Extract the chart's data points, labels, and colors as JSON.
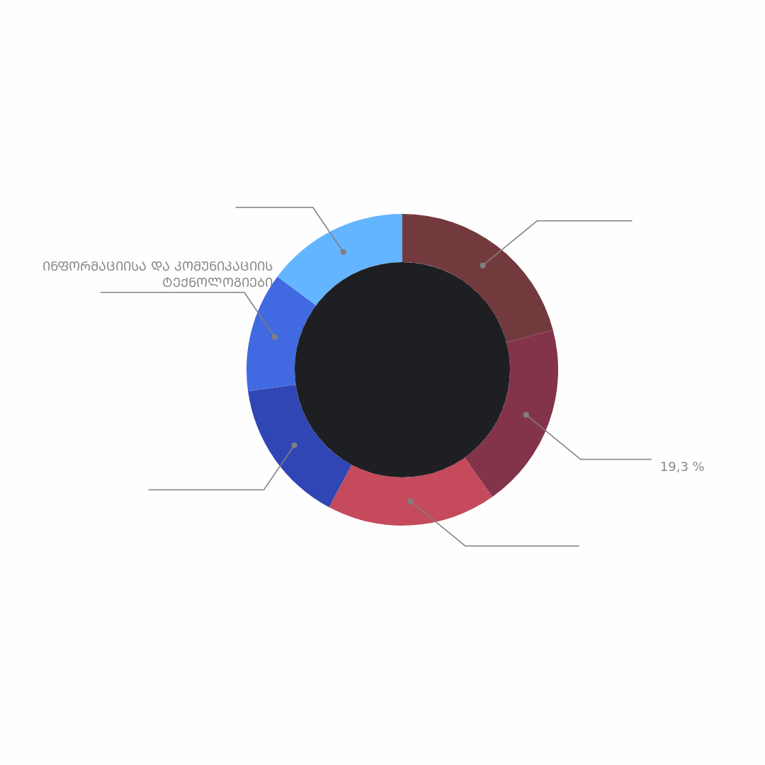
{
  "chart_data": {
    "type": "donut",
    "categories": [
      null,
      null,
      null,
      null,
      "ᲘᲜᲤᲝᲠᲛᲐᲪᲘᲘᲡᲐ ᲓᲐ ᲙᲝᲛᲣᲜᲘᲙᲐᲪᲘᲘᲡ ᲢᲔᲥᲜᲝᲚᲝᲒᲘᲔᲑᲘ",
      null
    ],
    "values": [
      20.9,
      19.3,
      17.6,
      15.0,
      12.4,
      14.8
    ],
    "colors": [
      "#733a3d",
      "#84344a",
      "#c44a5c",
      "#2f46b4",
      "#4169e1",
      "#63b5ff"
    ],
    "value_labels": [
      null,
      "19,3 %",
      null,
      null,
      null,
      null
    ]
  }
}
